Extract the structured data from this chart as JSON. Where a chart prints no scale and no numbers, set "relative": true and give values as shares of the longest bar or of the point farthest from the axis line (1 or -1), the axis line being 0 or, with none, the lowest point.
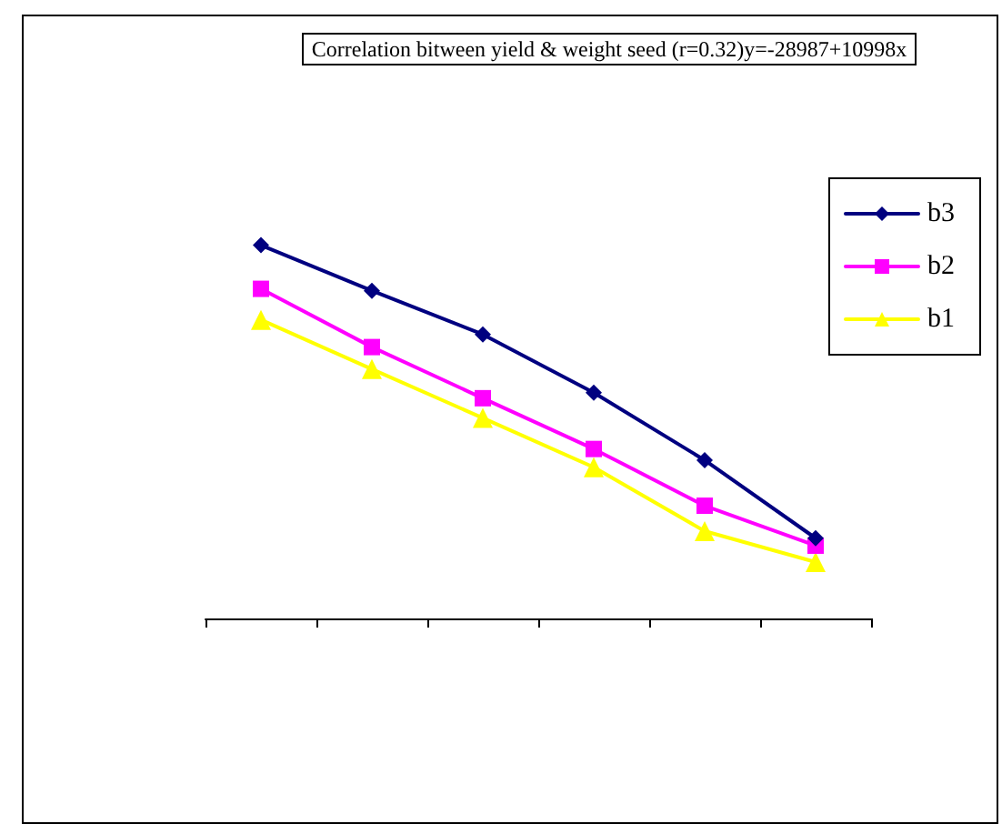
{
  "chart_data": {
    "type": "line",
    "title": "Correlation bitween yield & weight seed (r=0.32)y=-28987+10998x",
    "relative": true,
    "categories": [
      null,
      null,
      null,
      null,
      null,
      null
    ],
    "series": [
      {
        "name": "b3",
        "color": "#000080",
        "marker": "diamond",
        "values": [
          1,
          0.878,
          0.761,
          0.605,
          0.424,
          0.215
        ]
      },
      {
        "name": "b2",
        "color": "#ff00ff",
        "marker": "square",
        "values": [
          0.883,
          0.727,
          0.59,
          0.454,
          0.302,
          0.195
        ]
      },
      {
        "name": "b1",
        "color": "#ffff00",
        "marker": "triangle",
        "values": [
          0.8,
          0.668,
          0.537,
          0.405,
          0.234,
          0.151
        ]
      }
    ],
    "legend": "top right",
    "grid": false
  }
}
